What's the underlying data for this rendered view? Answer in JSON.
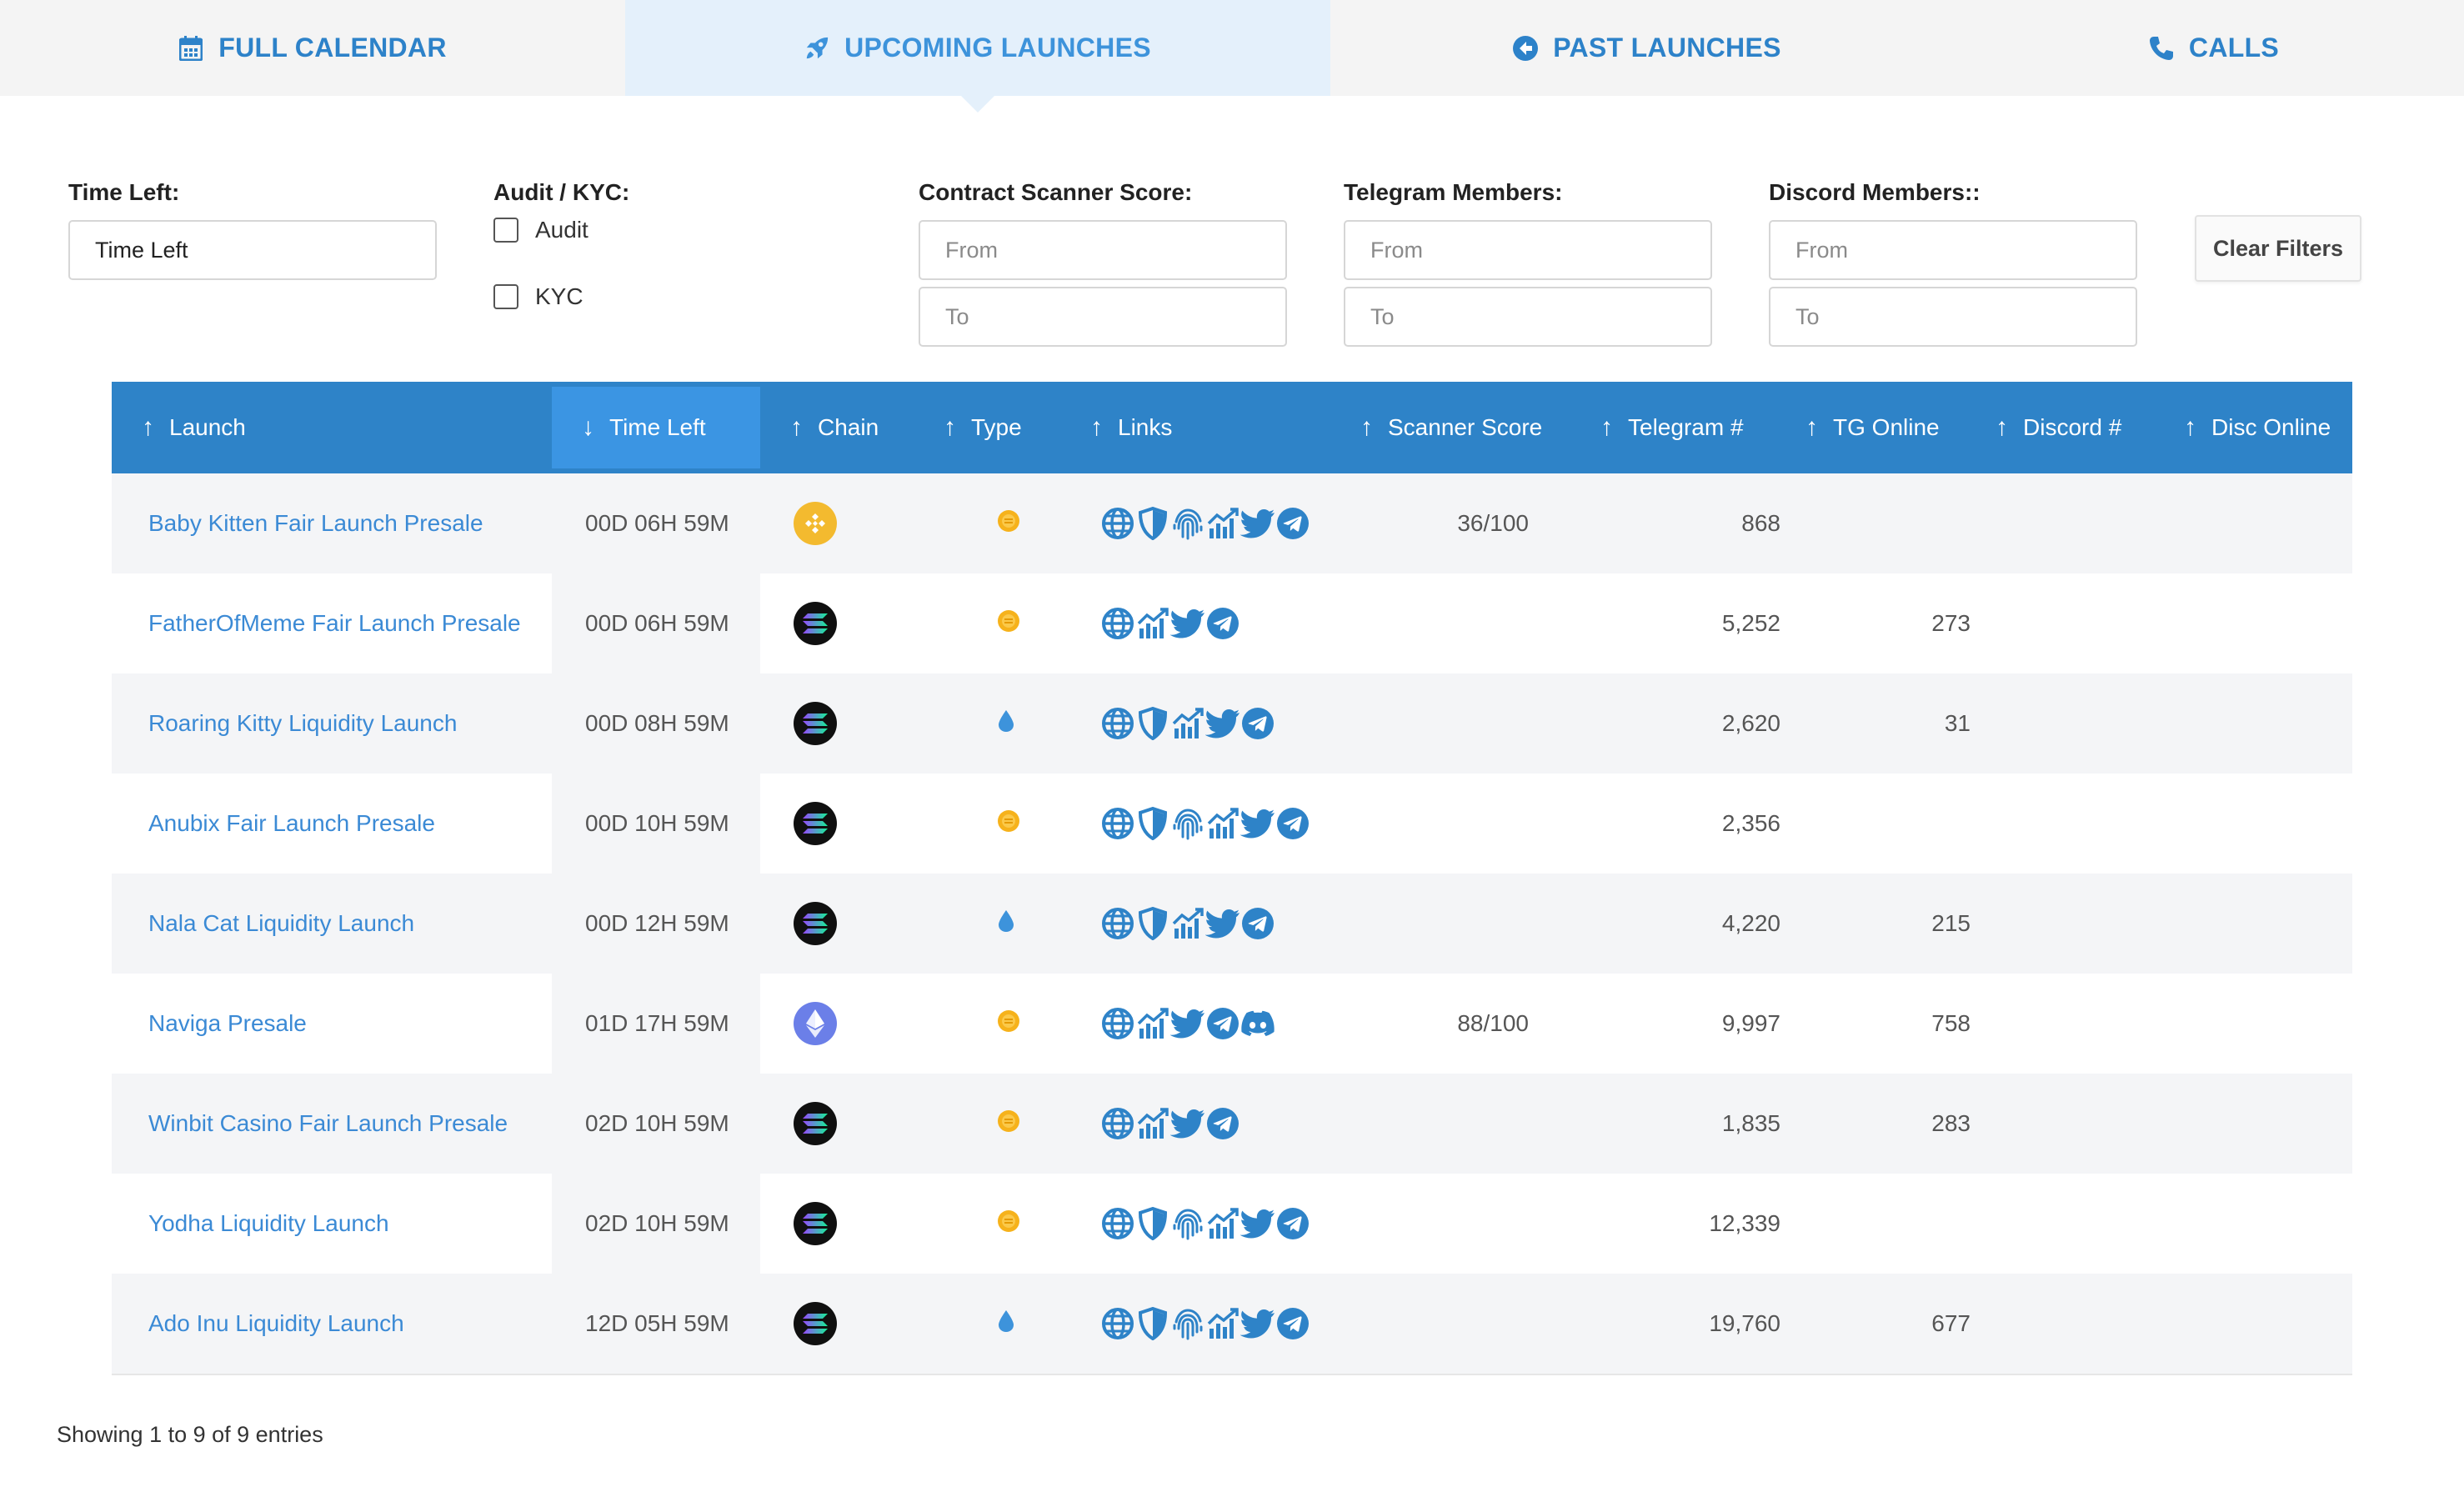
{
  "tabs": [
    {
      "label": "FULL CALENDAR",
      "icon": "calendar-icon"
    },
    {
      "label": "UPCOMING LAUNCHES",
      "icon": "rocket-icon",
      "active": true
    },
    {
      "label": "PAST LAUNCHES",
      "icon": "arrow-circle-left-icon"
    },
    {
      "label": "CALLS",
      "icon": "phone-icon"
    }
  ],
  "filters": {
    "time_left": {
      "label": "Time Left:",
      "value": "Time Left"
    },
    "audit_kyc": {
      "label": "Audit / KYC:",
      "options": [
        "Audit",
        "KYC"
      ]
    },
    "scanner": {
      "label": "Contract Scanner Score:",
      "from_placeholder": "From",
      "to_placeholder": "To"
    },
    "telegram": {
      "label": "Telegram Members:",
      "from_placeholder": "From",
      "to_placeholder": "To"
    },
    "discord": {
      "label": "Discord Members::",
      "from_placeholder": "From",
      "to_placeholder": "To"
    },
    "clear_label": "Clear Filters"
  },
  "table": {
    "columns": [
      {
        "label": "Launch",
        "arrow": "↑"
      },
      {
        "label": "Time Left",
        "arrow": "↓"
      },
      {
        "label": "Chain",
        "arrow": "↑"
      },
      {
        "label": "Type",
        "arrow": "↑"
      },
      {
        "label": "Links",
        "arrow": "↑"
      },
      {
        "label": "Scanner Score",
        "arrow": "↑"
      },
      {
        "label": "Telegram #",
        "arrow": "↑"
      },
      {
        "label": "TG Online",
        "arrow": "↑"
      },
      {
        "label": "Discord #",
        "arrow": "↑"
      },
      {
        "label": "Disc Online",
        "arrow": "↑"
      }
    ],
    "rows": [
      {
        "launch": "Baby Kitten Fair Launch Presale",
        "time_left": "00D 06H 59M",
        "chain": "bnb",
        "type": "coin",
        "links": [
          "globe",
          "shield",
          "fingerprint",
          "chart",
          "twitter",
          "telegram"
        ],
        "scanner": "36/100",
        "telegram": "868",
        "tg_online": "",
        "discord": "",
        "disc_online": ""
      },
      {
        "launch": "FatherOfMeme Fair Launch Presale",
        "time_left": "00D 06H 59M",
        "chain": "sol",
        "type": "coin",
        "links": [
          "globe",
          "chart",
          "twitter",
          "telegram"
        ],
        "scanner": "",
        "telegram": "5,252",
        "tg_online": "273",
        "discord": "",
        "disc_online": ""
      },
      {
        "launch": "Roaring Kitty Liquidity Launch",
        "time_left": "00D 08H 59M",
        "chain": "sol",
        "type": "drop",
        "links": [
          "globe",
          "shield",
          "chart",
          "twitter",
          "telegram"
        ],
        "scanner": "",
        "telegram": "2,620",
        "tg_online": "31",
        "discord": "",
        "disc_online": ""
      },
      {
        "launch": "Anubix Fair Launch Presale",
        "time_left": "00D 10H 59M",
        "chain": "sol",
        "type": "coin",
        "links": [
          "globe",
          "shield",
          "fingerprint",
          "chart",
          "twitter",
          "telegram"
        ],
        "scanner": "",
        "telegram": "2,356",
        "tg_online": "",
        "discord": "",
        "disc_online": ""
      },
      {
        "launch": "Nala Cat Liquidity Launch",
        "time_left": "00D 12H 59M",
        "chain": "sol",
        "type": "drop",
        "links": [
          "globe",
          "shield",
          "chart",
          "twitter",
          "telegram"
        ],
        "scanner": "",
        "telegram": "4,220",
        "tg_online": "215",
        "discord": "",
        "disc_online": ""
      },
      {
        "launch": "Naviga Presale",
        "time_left": "01D 17H 59M",
        "chain": "eth",
        "type": "coin",
        "links": [
          "globe",
          "chart",
          "twitter",
          "telegram",
          "discord"
        ],
        "scanner": "88/100",
        "telegram": "9,997",
        "tg_online": "758",
        "discord": "",
        "disc_online": ""
      },
      {
        "launch": "Winbit Casino Fair Launch Presale",
        "time_left": "02D 10H 59M",
        "chain": "sol",
        "type": "coin",
        "links": [
          "globe",
          "chart",
          "twitter",
          "telegram"
        ],
        "scanner": "",
        "telegram": "1,835",
        "tg_online": "283",
        "discord": "",
        "disc_online": ""
      },
      {
        "launch": "Yodha Liquidity Launch",
        "time_left": "02D 10H 59M",
        "chain": "sol",
        "type": "coin",
        "links": [
          "globe",
          "shield",
          "fingerprint",
          "chart",
          "twitter",
          "telegram"
        ],
        "scanner": "",
        "telegram": "12,339",
        "tg_online": "",
        "discord": "",
        "disc_online": ""
      },
      {
        "launch": "Ado Inu Liquidity Launch",
        "time_left": "12D 05H 59M",
        "chain": "sol",
        "type": "drop",
        "links": [
          "globe",
          "shield",
          "fingerprint",
          "chart",
          "twitter",
          "telegram"
        ],
        "scanner": "",
        "telegram": "19,760",
        "tg_online": "677",
        "discord": "",
        "disc_online": ""
      }
    ]
  },
  "footer": {
    "info": "Showing 1 to 9 of 9 entries"
  },
  "colors": {
    "accent": "#2e83c8",
    "link": "#3b8ad5",
    "coin": "#f6b21b",
    "drop": "#3d93db"
  }
}
